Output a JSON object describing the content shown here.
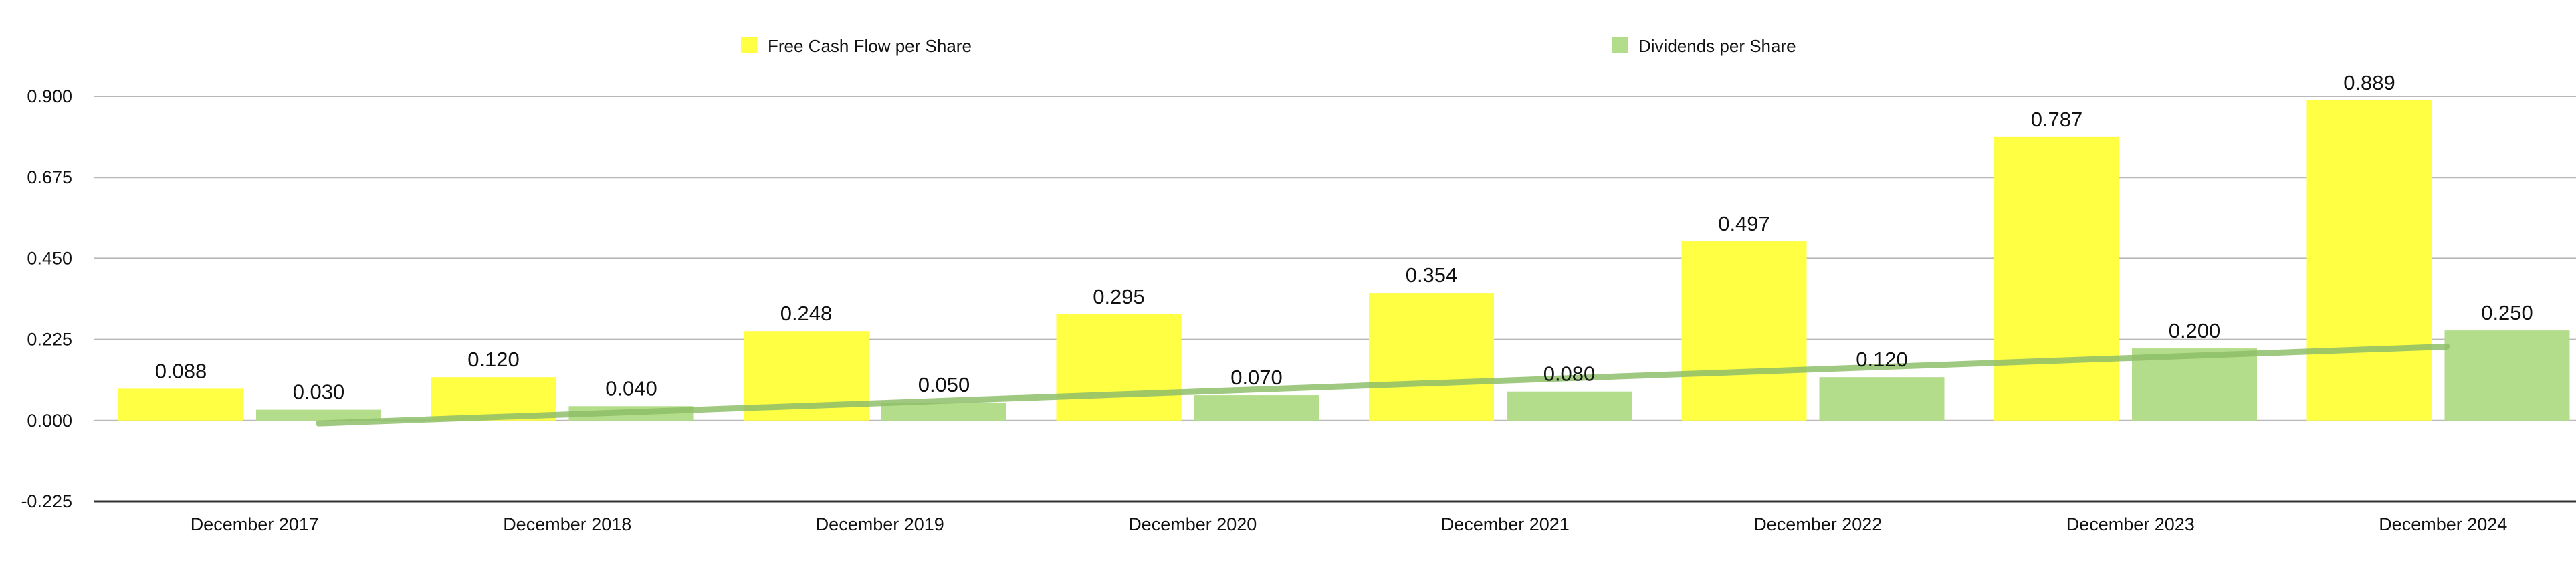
{
  "chart_data": {
    "type": "bar",
    "title": "",
    "xlabel": "",
    "ylabel": "",
    "categories": [
      "December 2017",
      "December 2018",
      "December 2019",
      "December 2020",
      "December 2021",
      "December 2022",
      "December 2023",
      "December 2024"
    ],
    "series": [
      {
        "name": "Free Cash Flow per Share",
        "color": "#ffff44",
        "values": [
          0.088,
          0.12,
          0.248,
          0.295,
          0.354,
          0.497,
          0.787,
          0.889
        ],
        "labels": [
          "0.088",
          "0.120",
          "0.248",
          "0.295",
          "0.354",
          "0.497",
          "0.787",
          "0.889"
        ]
      },
      {
        "name": "Dividends per Share",
        "color": "#b3dd8a",
        "values": [
          0.03,
          0.04,
          0.05,
          0.07,
          0.08,
          0.12,
          0.2,
          0.25
        ],
        "labels": [
          "0.030",
          "0.040",
          "0.050",
          "0.070",
          "0.080",
          "0.120",
          "0.200",
          "0.250"
        ]
      }
    ],
    "trendline": {
      "series": "Dividends per Share",
      "color": "#8fbf6a",
      "start_value": -0.008,
      "end_value": 0.205
    },
    "y_ticks": [
      "0.900",
      "0.675",
      "0.450",
      "0.225",
      "0.000",
      "-0.225"
    ],
    "y_tick_values": [
      0.9,
      0.675,
      0.45,
      0.225,
      0,
      -0.225
    ],
    "ylim": [
      -0.225,
      0.9
    ],
    "grid": true,
    "legend_position": "top"
  }
}
